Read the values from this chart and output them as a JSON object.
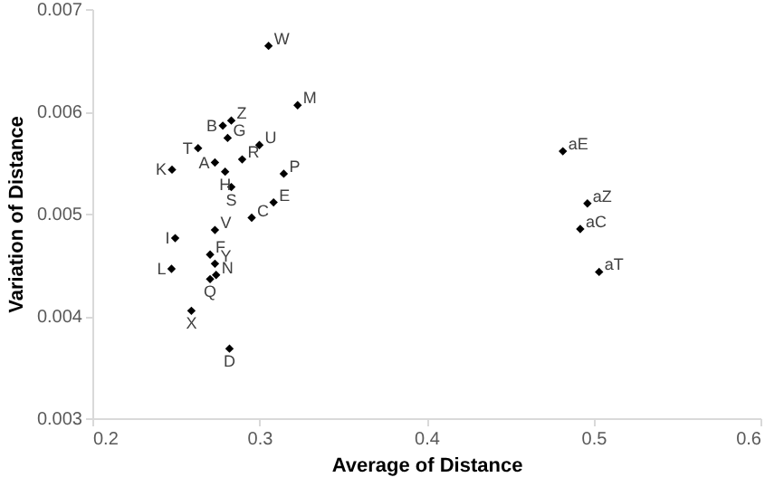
{
  "chart_data": {
    "type": "scatter",
    "xlabel": "Average of Distance",
    "ylabel": "Variation of Distance",
    "x": [
      0.3055,
      0.3229,
      0.2832,
      0.2781,
      0.281,
      0.2633,
      0.3,
      0.2734,
      0.2897,
      0.2795,
      0.2477,
      0.3146,
      0.2832,
      0.3085,
      0.2954,
      0.2734,
      0.2496,
      0.2705,
      0.2734,
      0.2474,
      0.2741,
      0.2705,
      0.2593,
      0.2821,
      0.4817,
      0.4964,
      0.4921,
      0.5034
    ],
    "series": [
      {
        "color": "#000000",
        "values": [
          0.00664,
          0.00606,
          0.00591,
          0.00586,
          0.00574,
          0.00564,
          0.00567,
          0.0055,
          0.00553,
          0.00541,
          0.00543,
          0.00539,
          0.00526,
          0.00511,
          0.00496,
          0.00484,
          0.00476,
          0.0046,
          0.00451,
          0.00446,
          0.0044,
          0.00436,
          0.00405,
          0.00368,
          0.00561,
          0.0051,
          0.00485,
          0.00443
        ]
      }
    ],
    "annotations": [
      {
        "text": "W",
        "x": 0.3055,
        "y": 0.00664
      },
      {
        "text": "M",
        "x": 0.3229,
        "y": 0.00606
      },
      {
        "text": "Z",
        "x": 0.2832,
        "y": 0.00591
      },
      {
        "text": "B",
        "x": 0.2781,
        "y": 0.00586
      },
      {
        "text": "G",
        "x": 0.281,
        "y": 0.00574
      },
      {
        "text": "T",
        "x": 0.2633,
        "y": 0.00564
      },
      {
        "text": "U",
        "x": 0.3,
        "y": 0.00567
      },
      {
        "text": "A",
        "x": 0.2734,
        "y": 0.0055
      },
      {
        "text": "R",
        "x": 0.2897,
        "y": 0.00553
      },
      {
        "text": "H",
        "x": 0.2795,
        "y": 0.00541
      },
      {
        "text": "K",
        "x": 0.2477,
        "y": 0.00543
      },
      {
        "text": "P",
        "x": 0.3146,
        "y": 0.00539
      },
      {
        "text": "S",
        "x": 0.2832,
        "y": 0.00526
      },
      {
        "text": "E",
        "x": 0.3085,
        "y": 0.00511
      },
      {
        "text": "C",
        "x": 0.2954,
        "y": 0.00496
      },
      {
        "text": "V",
        "x": 0.2734,
        "y": 0.00484
      },
      {
        "text": "I",
        "x": 0.2496,
        "y": 0.00476
      },
      {
        "text": "F",
        "x": 0.2705,
        "y": 0.0046
      },
      {
        "text": "Y",
        "x": 0.2734,
        "y": 0.00451
      },
      {
        "text": "L",
        "x": 0.2474,
        "y": 0.00446
      },
      {
        "text": "N",
        "x": 0.2741,
        "y": 0.0044
      },
      {
        "text": "Q",
        "x": 0.2705,
        "y": 0.00436
      },
      {
        "text": "X",
        "x": 0.2593,
        "y": 0.00405
      },
      {
        "text": "D",
        "x": 0.2821,
        "y": 0.00368
      },
      {
        "text": "aE",
        "x": 0.4817,
        "y": 0.00561
      },
      {
        "text": "aZ",
        "x": 0.4964,
        "y": 0.0051
      },
      {
        "text": "aC",
        "x": 0.4921,
        "y": 0.00485
      },
      {
        "text": "aT",
        "x": 0.5034,
        "y": 0.00443
      }
    ],
    "xlim": [
      0.2,
      0.6
    ],
    "xticks": [
      0.2,
      0.3,
      0.4,
      0.5,
      0.6
    ],
    "ylim": [
      0.003,
      0.007
    ],
    "yticks": [
      0.003,
      0.004,
      0.005,
      0.006,
      0.007
    ],
    "grid": false,
    "marker": "diamond"
  }
}
